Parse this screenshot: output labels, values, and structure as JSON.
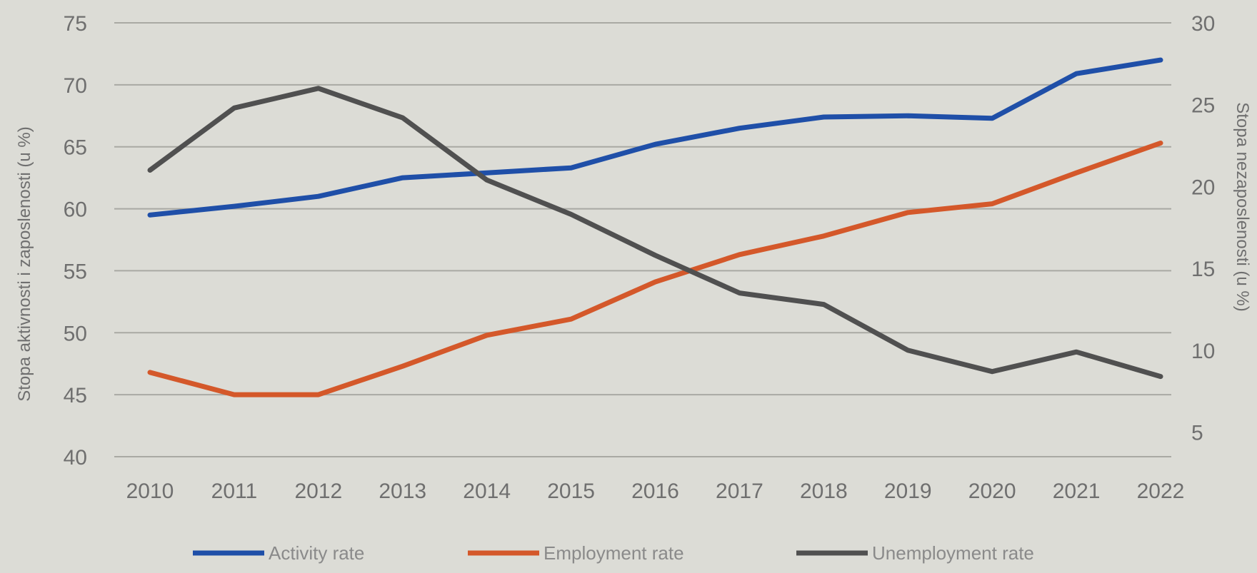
{
  "chart_data": {
    "type": "line",
    "categories": [
      "2010",
      "2011",
      "2012",
      "2013",
      "2014",
      "2015",
      "2016",
      "2017",
      "2018",
      "2019",
      "2020",
      "2021",
      "2022"
    ],
    "series": [
      {
        "name": "Activity rate",
        "axis": "left",
        "color": "#1f4fa8",
        "values": [
          59.5,
          60.2,
          61.0,
          62.5,
          62.9,
          63.3,
          65.2,
          66.5,
          67.4,
          67.5,
          67.3,
          70.9,
          72.0
        ]
      },
      {
        "name": "Employment rate",
        "axis": "left",
        "color": "#d4582a",
        "values": [
          46.8,
          45.0,
          45.0,
          47.3,
          49.8,
          51.1,
          54.1,
          56.3,
          57.8,
          59.7,
          60.4,
          62.9,
          65.3
        ]
      },
      {
        "name": "Unemployment rate",
        "axis": "right",
        "color": "#505050",
        "values": [
          21.0,
          24.8,
          26.0,
          24.2,
          20.4,
          18.3,
          15.8,
          13.5,
          12.8,
          10.0,
          8.7,
          9.9,
          8.4
        ]
      }
    ],
    "ylabel": "Stopa aktivnosti i zaposlenosti (u %)",
    "y2label": "Stopa nezaposlenosti (u %)",
    "ylim": [
      40,
      75
    ],
    "y2lim": [
      3.5,
      30
    ],
    "yticks": [
      "40",
      "45",
      "50",
      "55",
      "60",
      "65",
      "70",
      "75"
    ],
    "y2ticks": [
      "5",
      "10",
      "15",
      "20",
      "25",
      "30"
    ],
    "grid": true,
    "legend": "bottom"
  }
}
